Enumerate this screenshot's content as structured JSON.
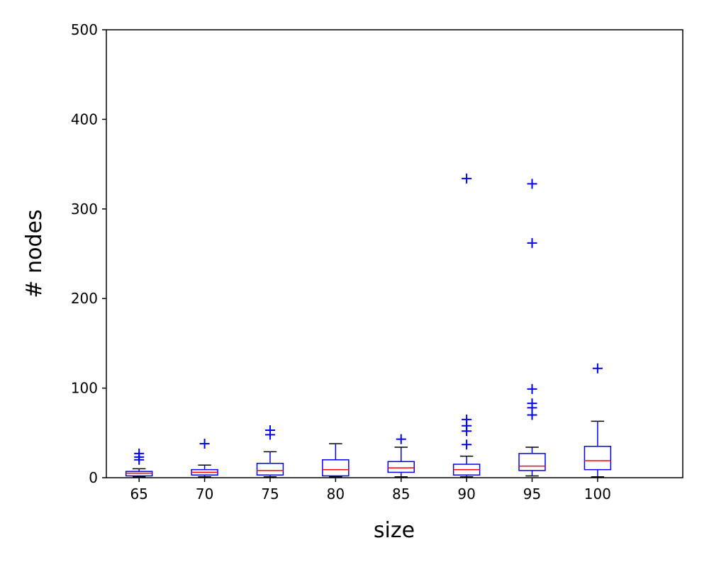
{
  "chart_data": {
    "type": "boxplot",
    "xlabel": "size",
    "ylabel": "# nodes",
    "ylim": [
      0,
      500
    ],
    "yticks": [
      0,
      100,
      200,
      300,
      400,
      500
    ],
    "categories": [
      "65",
      "70",
      "75",
      "80",
      "85",
      "90",
      "95",
      "100"
    ],
    "xlim": [
      0.5,
      9.3
    ],
    "boxes": [
      {
        "label": "65",
        "whisker_low": 1,
        "q1": 2,
        "median": 5,
        "q3": 7,
        "whisker_high": 10,
        "outliers": [
          20,
          23,
          27
        ]
      },
      {
        "label": "70",
        "whisker_low": 1,
        "q1": 3,
        "median": 6,
        "q3": 9,
        "whisker_high": 14,
        "outliers": [
          38
        ]
      },
      {
        "label": "75",
        "whisker_low": 1,
        "q1": 3,
        "median": 8,
        "q3": 16,
        "whisker_high": 29,
        "outliers": [
          48,
          53
        ]
      },
      {
        "label": "80",
        "whisker_low": 1,
        "q1": 2,
        "median": 9,
        "q3": 20,
        "whisker_high": 38,
        "outliers": []
      },
      {
        "label": "85",
        "whisker_low": 1,
        "q1": 6,
        "median": 11,
        "q3": 18,
        "whisker_high": 34,
        "outliers": [
          43
        ]
      },
      {
        "label": "90",
        "whisker_low": 1,
        "q1": 3,
        "median": 9,
        "q3": 15,
        "whisker_high": 24,
        "outliers": [
          37,
          52,
          58,
          65,
          334
        ]
      },
      {
        "label": "95",
        "whisker_low": 2,
        "q1": 8,
        "median": 13,
        "q3": 27,
        "whisker_high": 34,
        "outliers": [
          70,
          78,
          83,
          99,
          262,
          328
        ]
      },
      {
        "label": "100",
        "whisker_low": 1,
        "q1": 9,
        "median": 19,
        "q3": 35,
        "whisker_high": 63,
        "outliers": [
          122
        ]
      }
    ],
    "colors": {
      "box": "#0000ff",
      "median": "#ff0000",
      "whisker": "#0000ff",
      "cap": "#000000",
      "outlier": "#0000ff",
      "axis": "#000000"
    },
    "grid": false,
    "legend": "none"
  }
}
